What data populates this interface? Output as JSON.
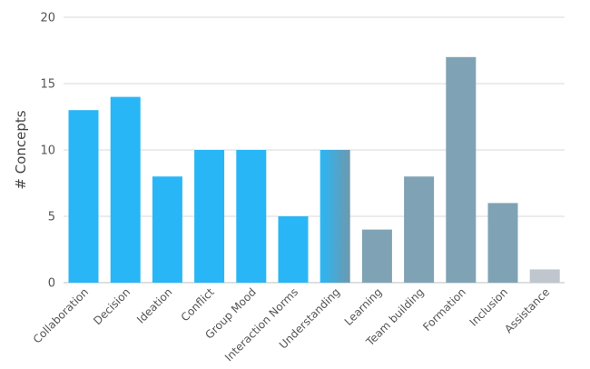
{
  "chart_data": {
    "type": "bar",
    "title": "",
    "xlabel": "",
    "ylabel": "# Concepts",
    "ylim": [
      0,
      20
    ],
    "yticks": [
      0,
      5,
      10,
      15,
      20
    ],
    "grid": true,
    "categories": [
      "Collaboration",
      "Decision",
      "Ideation",
      "Conflict",
      "Group Mood",
      "Interaction Norms",
      "Understanding",
      "Learning",
      "Team building",
      "Formation",
      "Inclusion",
      "Assistance"
    ],
    "values": [
      13,
      14,
      8,
      10,
      10,
      5,
      10,
      4,
      8,
      17,
      6,
      1
    ],
    "colors": [
      "#29b6f6",
      "#29b6f6",
      "#29b6f6",
      "#29b6f6",
      "#29b6f6",
      "#29b6f6",
      "gradient",
      "#7fa3b5",
      "#7fa3b5",
      "#7fa3b5",
      "#7fa3b5",
      "#c0c6ce"
    ],
    "gradient_colors": [
      "#29b6f6",
      "#6e98ae"
    ]
  }
}
